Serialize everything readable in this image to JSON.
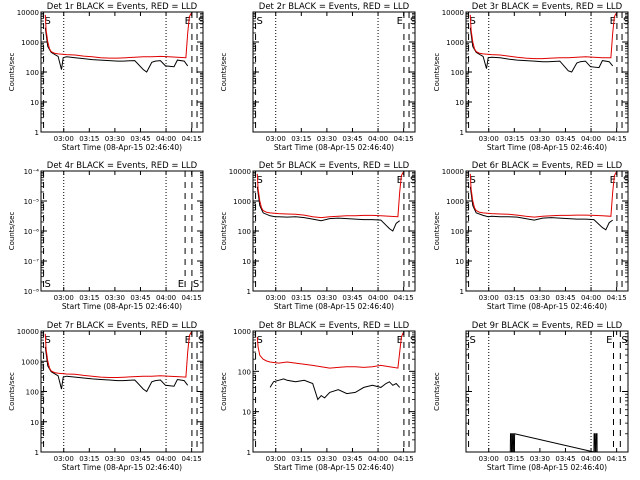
{
  "figure": {
    "x_tick_labels": [
      "03:00",
      "03:15",
      "03:30",
      "03:45",
      "04:00",
      "04:15"
    ],
    "xlabel": "Start Time (08-Apr-15 02:46:40)",
    "ylabel": "Counts/sec"
  },
  "chart_data": [
    {
      "type": "line",
      "title": "Det 1r BLACK = Events, RED = LLD",
      "y_scale": "log",
      "ylim": [
        1,
        10000
      ],
      "y_tick_labels": [
        "1",
        "10",
        "100",
        "1000",
        "10000"
      ],
      "xlim_minutes": [
        0,
        95
      ],
      "event_markers": {
        "S": 1.5,
        "E": 88.5,
        "S2": 91.5
      },
      "dotted_lines": [
        13.33,
        73.33
      ],
      "series": [
        {
          "name": "Events",
          "color": "#000000",
          "x": [
            2.5,
            4,
            6,
            10,
            12,
            13,
            15,
            20,
            25,
            30,
            35,
            40,
            45,
            48,
            55,
            60,
            62,
            65,
            67,
            70,
            73,
            78,
            80,
            84,
            86
          ],
          "y": [
            3000,
            700,
            450,
            330,
            120,
            300,
            320,
            300,
            280,
            260,
            250,
            240,
            230,
            230,
            240,
            120,
            100,
            210,
            230,
            240,
            160,
            150,
            250,
            230,
            160
          ]
        },
        {
          "name": "LLD",
          "color": "#e00000",
          "x": [
            2.5,
            3,
            4,
            5,
            6,
            8,
            10,
            15,
            20,
            25,
            30,
            35,
            40,
            45,
            50,
            55,
            60,
            65,
            70,
            75,
            80,
            85,
            86,
            87,
            88
          ],
          "y": [
            8000,
            2500,
            1000,
            600,
            480,
            420,
            400,
            380,
            370,
            340,
            320,
            300,
            290,
            290,
            300,
            310,
            320,
            320,
            330,
            320,
            310,
            300,
            2000,
            7000,
            9000
          ]
        }
      ]
    },
    {
      "type": "line",
      "title": "Det 2r BLACK = Events, RED = LLD",
      "y_scale": "log",
      "ylim": [
        1,
        10000
      ],
      "y_tick_labels": [],
      "xlim_minutes": [
        0,
        95
      ],
      "event_markers": {
        "S": 1.5,
        "E": 88.5,
        "S2": 91.5
      },
      "dotted_lines": [
        13.33,
        73.33
      ],
      "series": []
    },
    {
      "type": "line",
      "title": "Det 3r BLACK = Events, RED = LLD",
      "y_scale": "log",
      "ylim": [
        1,
        10000
      ],
      "y_tick_labels": [
        "1",
        "10",
        "100",
        "1000",
        "10000"
      ],
      "xlim_minutes": [
        0,
        95
      ],
      "event_markers": {
        "S": 1.5,
        "E": 88.5,
        "S2": 91.5
      },
      "dotted_lines": [
        13.33,
        73.33
      ],
      "series": [
        {
          "name": "Events",
          "color": "#000000",
          "x": [
            2.5,
            4,
            6,
            10,
            12,
            13,
            15,
            20,
            25,
            30,
            35,
            40,
            45,
            48,
            55,
            60,
            62,
            65,
            67,
            70,
            73,
            78,
            80,
            84,
            86
          ],
          "y": [
            3000,
            700,
            450,
            330,
            130,
            300,
            310,
            300,
            270,
            250,
            240,
            230,
            220,
            220,
            230,
            110,
            100,
            200,
            220,
            230,
            150,
            140,
            240,
            220,
            160
          ]
        },
        {
          "name": "LLD",
          "color": "#e00000",
          "x": [
            2.5,
            3,
            4,
            5,
            6,
            8,
            10,
            15,
            20,
            25,
            30,
            35,
            40,
            45,
            50,
            55,
            60,
            65,
            70,
            75,
            80,
            85,
            86,
            87,
            88
          ],
          "y": [
            8000,
            2500,
            1000,
            600,
            480,
            420,
            400,
            380,
            370,
            340,
            310,
            290,
            280,
            280,
            290,
            300,
            300,
            310,
            320,
            310,
            300,
            300,
            2000,
            7000,
            9000
          ]
        }
      ]
    },
    {
      "type": "line",
      "title": "Det 4r BLACK = Events, RED = LLD",
      "y_scale": "log",
      "ylim": [
        1e-08,
        0.0001
      ],
      "y_tick_labels": [
        "10⁻⁸",
        "10⁻⁷",
        "10⁻⁶",
        "10⁻⁵",
        "10⁻⁴"
      ],
      "xlim_minutes": [
        0,
        95
      ],
      "event_markers": {
        "S": 1.5,
        "E": 84.5,
        "S2": 88.5
      },
      "dotted_lines": [
        13.33,
        73.33
      ],
      "series": []
    },
    {
      "type": "line",
      "title": "Det 5r BLACK = Events, RED = LLD",
      "y_scale": "log",
      "ylim": [
        1,
        10000
      ],
      "y_tick_labels": [
        "1",
        "10",
        "100",
        "1000",
        "10000"
      ],
      "xlim_minutes": [
        0,
        95
      ],
      "event_markers": {
        "S": 1.5,
        "E": 88.5,
        "S2": 91.5
      },
      "dotted_lines": [
        13.33,
        73.33
      ],
      "series": [
        {
          "name": "Events",
          "color": "#000000",
          "x": [
            2.5,
            4,
            6,
            10,
            13,
            15,
            20,
            25,
            30,
            35,
            40,
            45,
            50,
            55,
            60,
            65,
            70,
            75,
            80,
            82,
            84,
            86
          ],
          "y": [
            3000,
            700,
            400,
            320,
            300,
            300,
            290,
            300,
            280,
            250,
            220,
            260,
            270,
            260,
            250,
            240,
            240,
            230,
            120,
            100,
            180,
            220
          ]
        },
        {
          "name": "LLD",
          "color": "#e00000",
          "x": [
            2.5,
            3,
            4,
            5,
            6,
            8,
            10,
            15,
            20,
            25,
            30,
            35,
            40,
            45,
            50,
            55,
            60,
            65,
            70,
            75,
            80,
            85,
            86,
            87,
            88
          ],
          "y": [
            8000,
            2500,
            1000,
            600,
            480,
            420,
            400,
            380,
            370,
            360,
            340,
            300,
            280,
            300,
            310,
            320,
            320,
            330,
            330,
            320,
            310,
            300,
            2000,
            7000,
            9000
          ]
        }
      ]
    },
    {
      "type": "line",
      "title": "Det 6r BLACK = Events, RED = LLD",
      "y_scale": "log",
      "ylim": [
        1,
        10000
      ],
      "y_tick_labels": [
        "1",
        "10",
        "100",
        "1000",
        "10000"
      ],
      "xlim_minutes": [
        0,
        95
      ],
      "event_markers": {
        "S": 1.5,
        "E": 88.5,
        "S2": 91.5
      },
      "dotted_lines": [
        13.33,
        73.33
      ],
      "series": [
        {
          "name": "Events",
          "color": "#000000",
          "x": [
            2.5,
            4,
            6,
            10,
            13,
            15,
            20,
            25,
            30,
            35,
            40,
            45,
            50,
            55,
            60,
            65,
            70,
            75,
            80,
            82,
            84,
            86
          ],
          "y": [
            3000,
            700,
            400,
            330,
            300,
            310,
            300,
            300,
            290,
            260,
            230,
            270,
            280,
            270,
            260,
            250,
            250,
            240,
            130,
            110,
            190,
            230
          ]
        },
        {
          "name": "LLD",
          "color": "#e00000",
          "x": [
            2.5,
            3,
            4,
            5,
            6,
            8,
            10,
            15,
            20,
            25,
            30,
            35,
            40,
            45,
            50,
            55,
            60,
            65,
            70,
            75,
            80,
            85,
            86,
            87,
            88
          ],
          "y": [
            8000,
            2500,
            1000,
            600,
            480,
            420,
            400,
            380,
            370,
            360,
            340,
            310,
            290,
            310,
            320,
            330,
            330,
            340,
            340,
            330,
            320,
            310,
            2000,
            7000,
            9000
          ]
        }
      ]
    },
    {
      "type": "line",
      "title": "Det 7r BLACK = Events, RED = LLD",
      "y_scale": "log",
      "ylim": [
        1,
        10000
      ],
      "y_tick_labels": [
        "1",
        "10",
        "100",
        "1000",
        "10000"
      ],
      "xlim_minutes": [
        0,
        95
      ],
      "event_markers": {
        "S": 1.5,
        "E": 88.5,
        "S2": 91.5
      },
      "dotted_lines": [
        13.33,
        73.33
      ],
      "series": [
        {
          "name": "Events",
          "color": "#000000",
          "x": [
            2.5,
            4,
            6,
            10,
            12,
            13,
            15,
            20,
            25,
            30,
            35,
            40,
            45,
            48,
            55,
            60,
            62,
            65,
            67,
            70,
            73,
            78,
            80,
            84,
            86
          ],
          "y": [
            3000,
            700,
            450,
            330,
            120,
            300,
            320,
            300,
            280,
            260,
            250,
            240,
            230,
            230,
            240,
            120,
            100,
            210,
            230,
            240,
            160,
            150,
            250,
            230,
            160
          ]
        },
        {
          "name": "LLD",
          "color": "#e00000",
          "x": [
            2.5,
            3,
            4,
            5,
            6,
            8,
            10,
            15,
            20,
            25,
            30,
            35,
            40,
            45,
            50,
            55,
            60,
            65,
            70,
            75,
            80,
            85,
            86,
            87,
            88
          ],
          "y": [
            8000,
            2500,
            1000,
            600,
            480,
            420,
            400,
            380,
            370,
            340,
            320,
            300,
            290,
            290,
            300,
            310,
            320,
            320,
            330,
            320,
            310,
            300,
            2000,
            7000,
            9000
          ]
        }
      ]
    },
    {
      "type": "line",
      "title": "Det 8r BLACK = Events, RED = LLD",
      "y_scale": "log",
      "ylim": [
        1,
        1000
      ],
      "y_tick_labels": [
        "1",
        "10",
        "100",
        "1000"
      ],
      "xlim_minutes": [
        0,
        95
      ],
      "event_markers": {
        "S": 1.5,
        "E": 88.5,
        "S2": 91.5
      },
      "dotted_lines": [
        13.33,
        73.33
      ],
      "series": [
        {
          "name": "Events",
          "color": "#000000",
          "x": [
            10,
            12,
            15,
            18,
            20,
            25,
            30,
            35,
            38,
            40,
            42,
            45,
            50,
            55,
            60,
            65,
            70,
            75,
            78,
            80,
            82,
            84,
            86
          ],
          "y": [
            40,
            55,
            60,
            65,
            60,
            55,
            60,
            50,
            20,
            25,
            22,
            30,
            35,
            28,
            30,
            40,
            45,
            40,
            50,
            55,
            45,
            50,
            40
          ]
        },
        {
          "name": "LLD",
          "color": "#e00000",
          "x": [
            2.5,
            3,
            4,
            6,
            8,
            10,
            15,
            20,
            25,
            30,
            35,
            40,
            45,
            50,
            55,
            60,
            65,
            70,
            75,
            80,
            85,
            86,
            87,
            88
          ],
          "y": [
            700,
            400,
            250,
            200,
            180,
            170,
            160,
            170,
            160,
            150,
            140,
            130,
            120,
            125,
            130,
            130,
            125,
            130,
            140,
            130,
            120,
            300,
            700,
            900
          ]
        }
      ]
    },
    {
      "type": "line",
      "title": "Det 9r BLACK = Events, RED = LLD",
      "y_scale": "log",
      "ylim": [
        1,
        100
      ],
      "y_tick_labels": [],
      "xlim_minutes": [
        0,
        95
      ],
      "event_markers": {
        "S": 1.5,
        "E": 86.5,
        "S2": 90.5
      },
      "dotted_lines": [
        13.33,
        73.33
      ],
      "series": [
        {
          "name": "Events",
          "color": "#000000",
          "x": [
            26,
            26.1,
            26.6,
            26.7,
            27.2,
            27.3,
            27.8,
            27.9,
            28.4,
            28.5,
            75,
            75.1,
            75.6,
            75.7,
            76.2,
            76.3,
            76.8,
            76.9
          ],
          "y": [
            1,
            2,
            2,
            1,
            1,
            2,
            2,
            1,
            1,
            2,
            1,
            2,
            2,
            1,
            1,
            2,
            2,
            1
          ]
        }
      ]
    }
  ]
}
